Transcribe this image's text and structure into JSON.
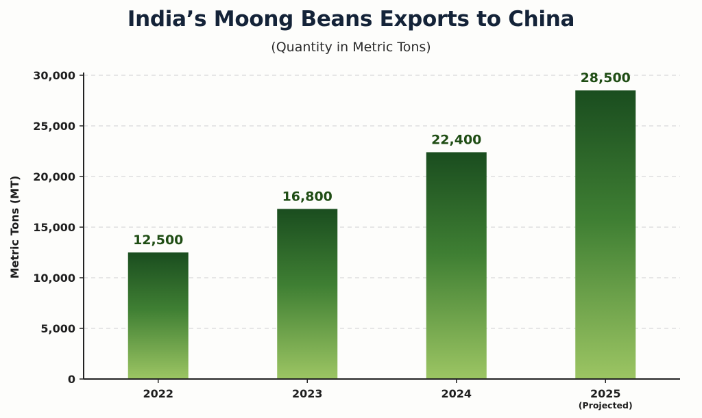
{
  "chart_data": {
    "type": "bar",
    "title": "India’s Moong Beans Exports to China",
    "subtitle": "(Quantity in Metric Tons)",
    "xlabel": "",
    "ylabel": "Metric Tons (MT)",
    "categories": [
      "2022",
      "2023",
      "2024",
      "2025"
    ],
    "category_sublabels": [
      "",
      "",
      "",
      "(Projected)"
    ],
    "values": [
      12500,
      16800,
      22400,
      28500
    ],
    "value_labels": [
      "12,500",
      "16,800",
      "22,400",
      "28,500"
    ],
    "ylim": [
      0,
      30000
    ],
    "yticks": [
      0,
      5000,
      10000,
      15000,
      20000,
      25000,
      30000
    ],
    "ytick_labels": [
      "0",
      "5,000",
      "10,000",
      "15,000",
      "20,000",
      "25,000",
      "30,000"
    ],
    "grid": true,
    "colors": {
      "bar_top": "#1a4d1f",
      "bar_mid": "#3f7f33",
      "bar_bottom": "#9cc563",
      "value_label": "#1f4d14",
      "grid": "#d0d0d0"
    }
  }
}
